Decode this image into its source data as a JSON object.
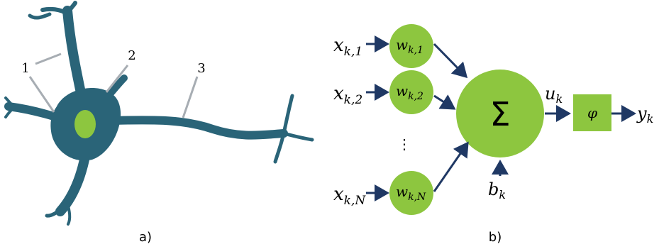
{
  "panel_a": {
    "labels": [
      "1",
      "2",
      "3"
    ],
    "caption": "a)"
  },
  "panel_b": {
    "inputs": [
      {
        "base": "x",
        "sub": "k,1"
      },
      {
        "base": "x",
        "sub": "k,2"
      },
      {
        "base": "x",
        "sub": "k,N"
      }
    ],
    "weights": [
      {
        "base": "w",
        "sub": "k,1"
      },
      {
        "base": "w",
        "sub": "k,2"
      },
      {
        "base": "w",
        "sub": "k,N"
      }
    ],
    "ellipsis": "⋮",
    "sum": "Σ",
    "bias": {
      "base": "b",
      "sub": "k"
    },
    "activation_input": {
      "base": "u",
      "sub": "k"
    },
    "activation": "φ",
    "output": {
      "base": "y",
      "sub": "k"
    },
    "caption": "b)"
  }
}
